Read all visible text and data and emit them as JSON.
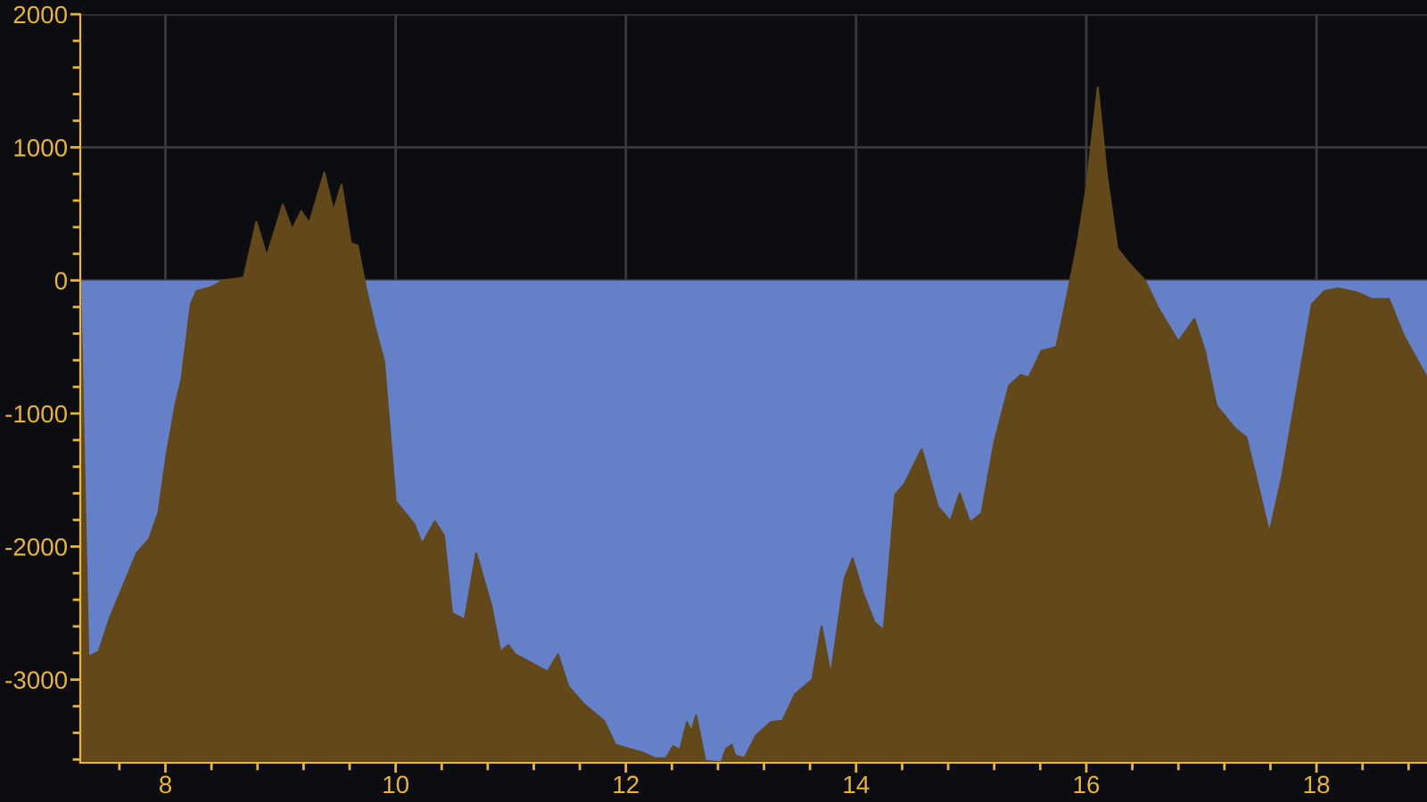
{
  "chart_data": {
    "type": "area",
    "x": [
      7.26,
      7.33,
      7.42,
      7.52,
      7.65,
      7.75,
      7.86,
      7.94,
      8.01,
      8.09,
      8.14,
      8.22,
      8.27,
      8.4,
      8.5,
      8.68,
      8.79,
      8.88,
      9.02,
      9.1,
      9.18,
      9.25,
      9.38,
      9.46,
      9.53,
      9.61,
      9.67,
      9.74,
      9.82,
      9.9,
      10.0,
      10.16,
      10.23,
      10.34,
      10.42,
      10.49,
      10.6,
      10.7,
      10.78,
      10.83,
      10.91,
      10.98,
      11.04,
      11.32,
      11.41,
      11.5,
      11.63,
      11.81,
      11.91,
      12.15,
      12.25,
      12.35,
      12.41,
      12.47,
      12.53,
      12.57,
      12.61,
      12.65,
      12.69,
      12.83,
      12.87,
      12.92,
      12.95,
      13.03,
      13.13,
      13.26,
      13.36,
      13.47,
      13.62,
      13.7,
      13.78,
      13.9,
      13.97,
      14.06,
      14.16,
      14.24,
      14.34,
      14.42,
      14.57,
      14.71,
      14.82,
      14.9,
      14.99,
      15.09,
      15.2,
      15.33,
      15.43,
      15.5,
      15.61,
      15.74,
      15.84,
      15.92,
      16.0,
      16.1,
      16.18,
      16.27,
      16.37,
      16.51,
      16.62,
      16.8,
      16.94,
      17.03,
      17.13,
      17.29,
      17.39,
      17.5,
      17.59,
      17.7,
      17.83,
      17.96,
      18.07,
      18.19,
      18.35,
      18.48,
      18.63,
      18.76,
      18.96
    ],
    "series": [
      {
        "color": "#634819",
        "values": [
          0,
          -2830,
          -2790,
          -2530,
          -2260,
          -2050,
          -1940,
          -1740,
          -1310,
          -920,
          -740,
          -180,
          -80,
          -50,
          0,
          20,
          440,
          180,
          570,
          380,
          520,
          430,
          810,
          520,
          720,
          280,
          260,
          -50,
          -350,
          -610,
          -1660,
          -1830,
          -1980,
          -1810,
          -1920,
          -2500,
          -2550,
          -2050,
          -2290,
          -2440,
          -2790,
          -2740,
          -2810,
          -2940,
          -2810,
          -3050,
          -3180,
          -3310,
          -3490,
          -3550,
          -3590,
          -3590,
          -3500,
          -3530,
          -3320,
          -3390,
          -3270,
          -3440,
          -3610,
          -3620,
          -3520,
          -3490,
          -3570,
          -3590,
          -3420,
          -3320,
          -3310,
          -3110,
          -3000,
          -2600,
          -2970,
          -2240,
          -2090,
          -2350,
          -2570,
          -2630,
          -1610,
          -1530,
          -1270,
          -1700,
          -1810,
          -1600,
          -1820,
          -1750,
          -1220,
          -790,
          -710,
          -730,
          -530,
          -500,
          -90,
          260,
          690,
          1450,
          780,
          240,
          130,
          0,
          -200,
          -460,
          -290,
          -530,
          -940,
          -1110,
          -1180,
          -1570,
          -1900,
          -1480,
          -830,
          -180,
          -80,
          -60,
          -90,
          -140,
          -140,
          -420,
          -730
        ]
      }
    ],
    "bands": [
      {
        "axis": "y",
        "from": -3625,
        "to": 0,
        "color": "#6480c8"
      }
    ],
    "xlim": [
      7.26,
      18.96
    ],
    "ylim": [
      -3625,
      2000
    ],
    "xticks": [
      {
        "value": 7.6,
        "label": null
      },
      8,
      {
        "value": 8.4,
        "label": null
      },
      {
        "value": 8.8,
        "label": null
      },
      {
        "value": 9.2,
        "label": null
      },
      {
        "value": 9.6,
        "label": null
      },
      10,
      {
        "value": 10.4,
        "label": null
      },
      {
        "value": 10.8,
        "label": null
      },
      {
        "value": 11.2,
        "label": null
      },
      {
        "value": 11.6,
        "label": null
      },
      12,
      {
        "value": 12.4,
        "label": null
      },
      {
        "value": 12.8,
        "label": null
      },
      {
        "value": 13.2,
        "label": null
      },
      {
        "value": 13.6,
        "label": null
      },
      14,
      {
        "value": 14.4,
        "label": null
      },
      {
        "value": 14.8,
        "label": null
      },
      {
        "value": 15.2,
        "label": null
      },
      {
        "value": 15.6,
        "label": null
      },
      16,
      {
        "value": 16.4,
        "label": null
      },
      {
        "value": 16.8,
        "label": null
      },
      {
        "value": 17.2,
        "label": null
      },
      {
        "value": 17.6,
        "label": null
      },
      18,
      {
        "value": 18.4,
        "label": null
      },
      {
        "value": 18.8,
        "label": null
      }
    ],
    "yticks": [
      {
        "value": -3600,
        "label": null
      },
      {
        "value": -3400,
        "label": null
      },
      {
        "value": -3200,
        "label": null
      },
      -3000,
      {
        "value": -2800,
        "label": null
      },
      {
        "value": -2600,
        "label": null
      },
      {
        "value": -2400,
        "label": null
      },
      {
        "value": -2200,
        "label": null
      },
      -2000,
      {
        "value": -1800,
        "label": null
      },
      {
        "value": -1600,
        "label": null
      },
      {
        "value": -1400,
        "label": null
      },
      {
        "value": -1200,
        "label": null
      },
      -1000,
      {
        "value": -800,
        "label": null
      },
      {
        "value": -600,
        "label": null
      },
      {
        "value": -400,
        "label": null
      },
      {
        "value": -200,
        "label": null
      },
      0,
      {
        "value": 200,
        "label": null
      },
      {
        "value": 400,
        "label": null
      },
      {
        "value": 600,
        "label": null
      },
      {
        "value": 800,
        "label": null
      },
      1000,
      {
        "value": 1200,
        "label": null
      },
      {
        "value": 1400,
        "label": null
      },
      {
        "value": 1600,
        "label": null
      },
      {
        "value": 1800,
        "label": null
      },
      2000
    ],
    "grid": true
  }
}
